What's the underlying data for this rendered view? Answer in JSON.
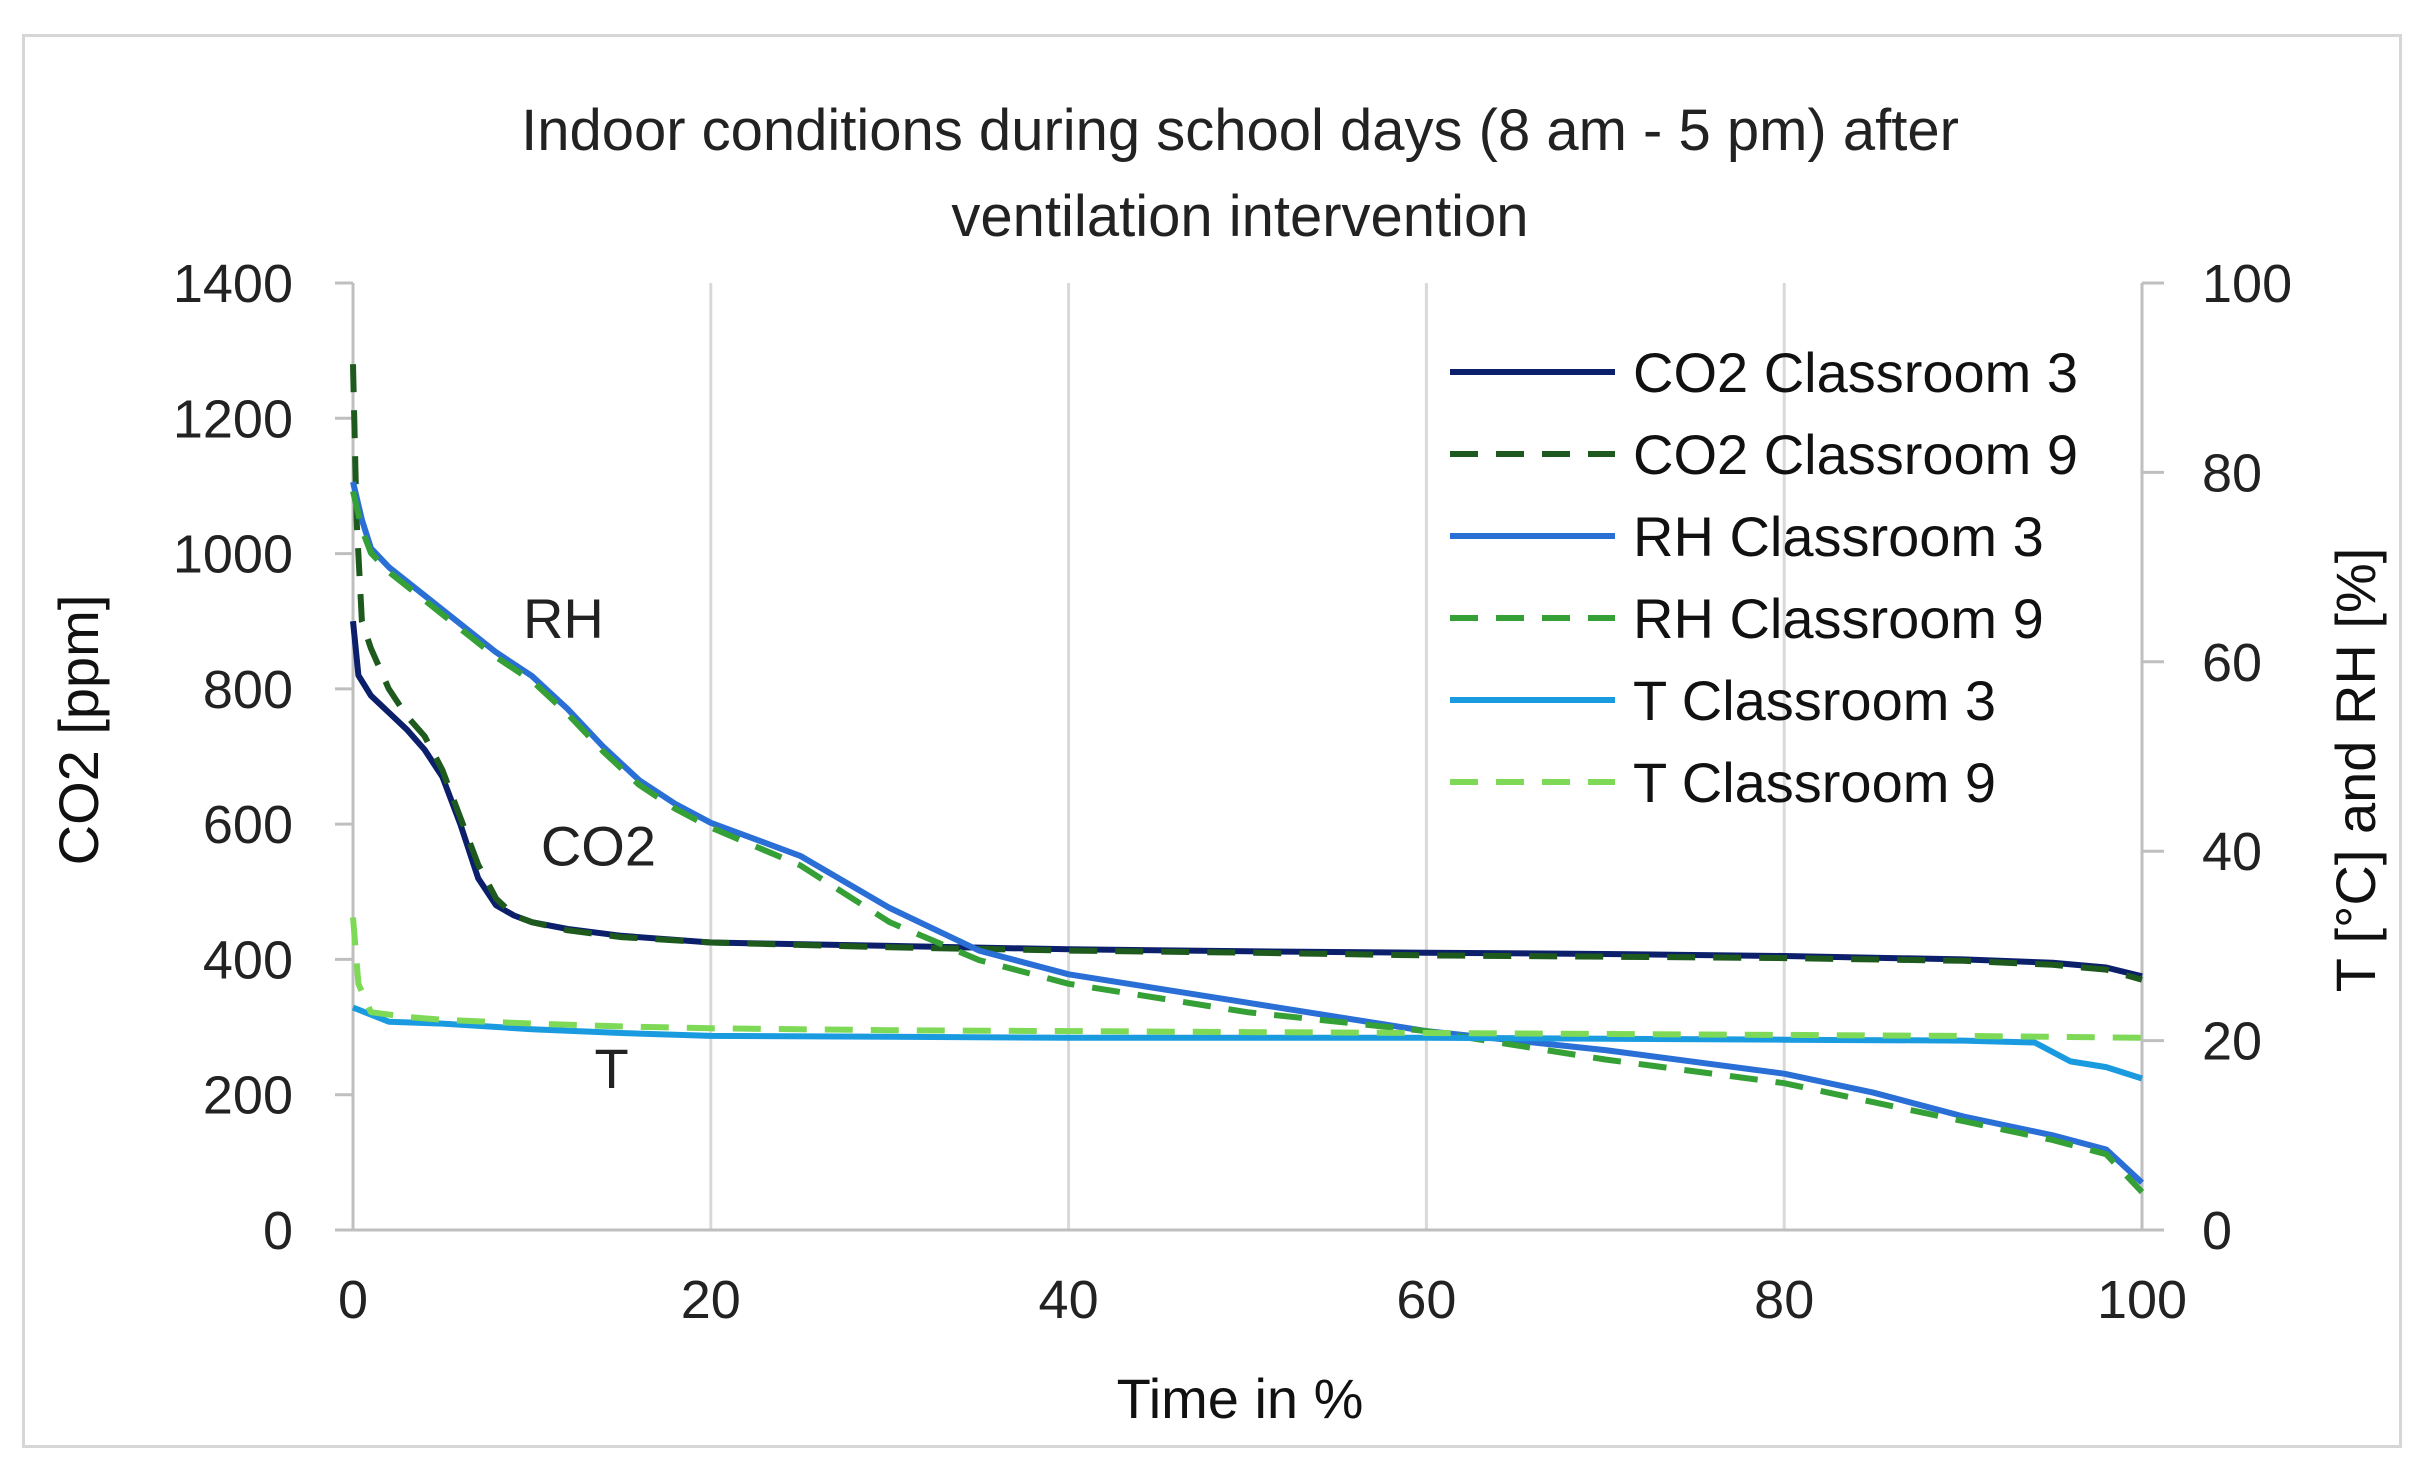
{
  "chart_data": {
    "type": "line",
    "title": [
      "Indoor conditions during school days (8 am - 5 pm) after",
      "ventilation intervention"
    ],
    "xlabel": "Time in %",
    "ylabel": "CO2 [ppm]",
    "y2label": "T [°C] and RH [%]",
    "xlim": [
      0,
      100
    ],
    "ylim": [
      0,
      1400
    ],
    "y2lim": [
      0,
      100
    ],
    "xticks": [
      "0",
      "20",
      "40",
      "60",
      "80",
      "100"
    ],
    "yticks": [
      "0",
      "200",
      "400",
      "600",
      "800",
      "1000",
      "1200",
      "1400"
    ],
    "y2ticks": [
      "0",
      "20",
      "40",
      "60",
      "80",
      "100"
    ],
    "grid": "vertical",
    "legend_position": "top-right",
    "annotations": [
      {
        "text": "RH",
        "x": 9.5,
        "y2": 62.5
      },
      {
        "text": "CO2",
        "x": 10.5,
        "y2": 38.5
      },
      {
        "text": "T",
        "x": 13.5,
        "y2": 15
      }
    ],
    "series": [
      {
        "name": "CO2 Classroom 3",
        "axis": "left",
        "color": "#0b1f6b",
        "dash": "solid",
        "x": [
          0,
          0.3,
          1,
          2,
          3,
          4,
          5,
          6,
          7,
          8,
          9,
          10,
          12,
          15,
          20,
          30,
          40,
          50,
          60,
          70,
          80,
          90,
          95,
          98,
          100
        ],
        "y": [
          900,
          820,
          790,
          765,
          740,
          710,
          670,
          600,
          520,
          480,
          465,
          455,
          445,
          435,
          425,
          420,
          415,
          412,
          410,
          408,
          405,
          400,
          395,
          388,
          375
        ]
      },
      {
        "name": "CO2 Classroom 9",
        "axis": "left",
        "color": "#1e5a1e",
        "dash": "dashed",
        "x": [
          0,
          0.2,
          0.5,
          1,
          2,
          3,
          4,
          5,
          6,
          7,
          8,
          9,
          10,
          12,
          15,
          20,
          30,
          40,
          50,
          60,
          70,
          80,
          90,
          95,
          98,
          100
        ],
        "y": [
          1280,
          1050,
          900,
          860,
          800,
          760,
          730,
          680,
          610,
          540,
          490,
          465,
          455,
          443,
          433,
          425,
          418,
          413,
          410,
          406,
          404,
          402,
          398,
          392,
          385,
          370
        ]
      },
      {
        "name": "RH Classroom 3",
        "axis": "right",
        "color": "#2a6fd6",
        "dash": "solid",
        "x": [
          0,
          0.5,
          1,
          2,
          4,
          6,
          8,
          10,
          12,
          14,
          16,
          18,
          20,
          25,
          30,
          35,
          40,
          50,
          60,
          70,
          80,
          85,
          90,
          95,
          98,
          100
        ],
        "y": [
          79,
          75,
          72,
          70,
          67,
          64,
          61,
          58.5,
          55,
          51,
          47.5,
          45,
          43,
          39.5,
          34,
          29.5,
          27,
          24,
          21,
          19,
          16.5,
          14.5,
          12,
          10,
          8.5,
          5
        ]
      },
      {
        "name": "RH Classroom 9",
        "axis": "right",
        "color": "#35a035",
        "dash": "dashed",
        "x": [
          0,
          0.5,
          1,
          2,
          4,
          6,
          8,
          10,
          12,
          14,
          16,
          18,
          20,
          25,
          30,
          35,
          40,
          50,
          60,
          70,
          80,
          85,
          90,
          95,
          98,
          100
        ],
        "y": [
          78,
          74,
          71.5,
          69.5,
          66.5,
          63.5,
          60.5,
          58,
          54.5,
          50.5,
          47,
          44.5,
          42.5,
          38.5,
          32.5,
          28.5,
          26,
          23,
          21,
          18,
          15.5,
          13.5,
          11.5,
          9.5,
          8,
          4
        ]
      },
      {
        "name": "T Classroom 3",
        "axis": "right",
        "color": "#1a9be0",
        "dash": "solid",
        "x": [
          0,
          2,
          5,
          10,
          15,
          20,
          30,
          40,
          50,
          60,
          70,
          80,
          90,
          94,
          96,
          98,
          100
        ],
        "y": [
          23.5,
          22,
          21.8,
          21.2,
          20.8,
          20.5,
          20.4,
          20.3,
          20.3,
          20.3,
          20.2,
          20.1,
          20.0,
          19.8,
          17.8,
          17.2,
          16
        ]
      },
      {
        "name": "T Classroom 9",
        "axis": "right",
        "color": "#7ed957",
        "dash": "dashed",
        "x": [
          0,
          0.3,
          1,
          3,
          5,
          10,
          15,
          20,
          30,
          40,
          50,
          60,
          70,
          80,
          90,
          100
        ],
        "y": [
          33,
          26,
          23,
          22.5,
          22.2,
          21.8,
          21.5,
          21.3,
          21.1,
          21,
          20.9,
          20.8,
          20.7,
          20.6,
          20.5,
          20.3
        ]
      }
    ]
  }
}
